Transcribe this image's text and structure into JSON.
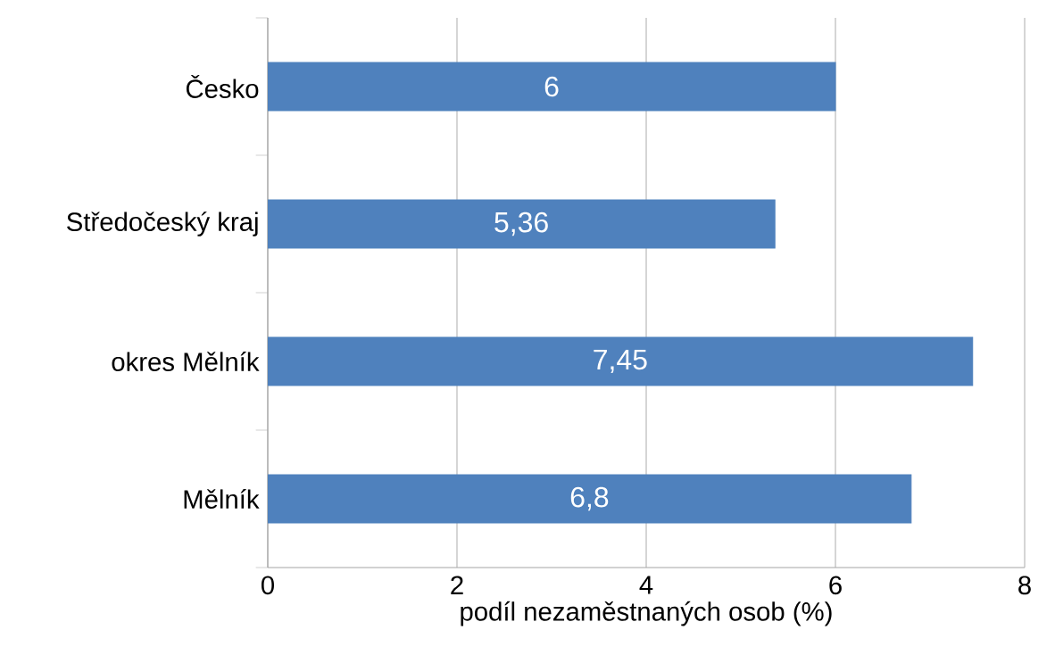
{
  "chart_data": {
    "type": "bar",
    "orientation": "horizontal",
    "categories": [
      "Česko",
      "Středočeský kraj",
      "okres Mělník",
      "Mělník"
    ],
    "values": [
      6,
      5.36,
      7.45,
      6.8
    ],
    "value_labels": [
      "6",
      "5,36",
      "7,45",
      "6,8"
    ],
    "color": "#4f81bd",
    "xlabel": "podíl nezaměstnaných osob (%)",
    "xlim": [
      0,
      8
    ],
    "xticks": [
      0,
      2,
      4,
      6,
      8
    ],
    "grid": "x"
  }
}
